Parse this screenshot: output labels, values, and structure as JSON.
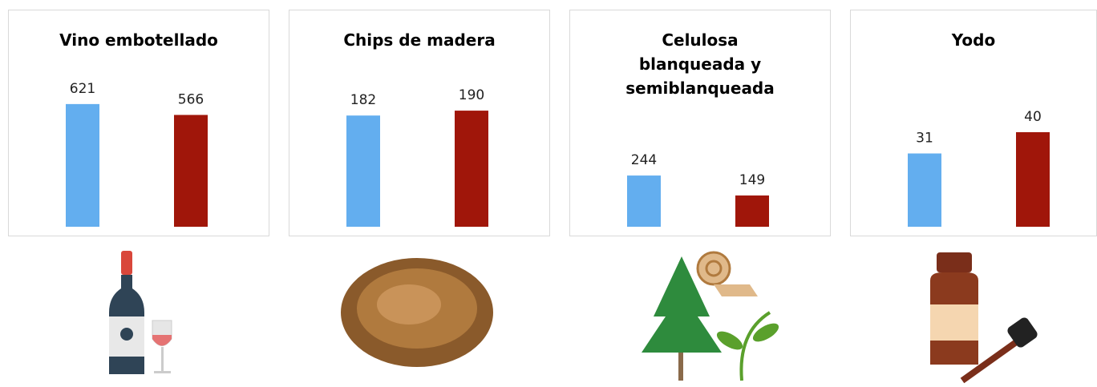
{
  "chart_data": [
    {
      "type": "bar",
      "title": "Vino embotellado",
      "categories": [
        null,
        null
      ],
      "values": [
        621,
        566
      ],
      "colors": [
        "#63aeef",
        "#a0160a"
      ],
      "ylim": [
        0,
        730
      ]
    },
    {
      "type": "bar",
      "title": "Chips de madera",
      "categories": [
        null,
        null
      ],
      "values": [
        182,
        190
      ],
      "colors": [
        "#63aeef",
        "#a0160a"
      ],
      "ylim": [
        0,
        236
      ]
    },
    {
      "type": "bar",
      "title": "Celulosa blanqueada y semiblanqueada",
      "categories": [
        null,
        null
      ],
      "values": [
        244,
        149
      ],
      "colors": [
        "#63aeef",
        "#a0160a"
      ],
      "ylim": [
        0,
        687
      ]
    },
    {
      "type": "bar",
      "title": "Yodo",
      "categories": [
        null,
        null
      ],
      "values": [
        31,
        40
      ],
      "colors": [
        "#63aeef",
        "#a0160a"
      ],
      "ylim": [
        0,
        61
      ]
    }
  ]
}
